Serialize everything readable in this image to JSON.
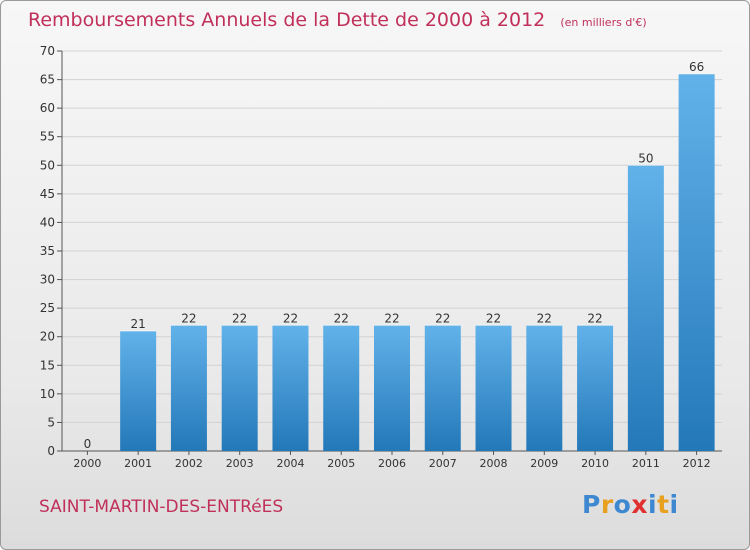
{
  "title": "Remboursements Annuels de la Dette de 2000 à 2012",
  "unit_note": "(en milliers d'€)",
  "commune": "SAINT-MARTIN-DES-ENTRéES",
  "logo": {
    "text": "Proxiti",
    "letters": [
      {
        "ch": "P",
        "color": "#3d88d0"
      },
      {
        "ch": "r",
        "color": "#e8a020"
      },
      {
        "ch": "o",
        "color": "#3d88d0"
      },
      {
        "ch": "x",
        "color": "#e03030"
      },
      {
        "ch": "i",
        "color": "#3d88d0"
      },
      {
        "ch": "t",
        "color": "#e8a020"
      },
      {
        "ch": "i",
        "color": "#3d88d0"
      }
    ]
  },
  "colors": {
    "bar_top": "#62b2ea",
    "bar_bottom": "#2378b8",
    "grid": "#d2d2d2",
    "axis": "#555555",
    "text": "#333333",
    "accent": "#c0305a"
  },
  "chart_data": {
    "type": "bar",
    "title": "Remboursements Annuels de la Dette de 2000 à 2012",
    "categories": [
      "2000",
      "2001",
      "2002",
      "2003",
      "2004",
      "2005",
      "2006",
      "2007",
      "2008",
      "2009",
      "2010",
      "2011",
      "2012"
    ],
    "values": [
      0,
      21,
      22,
      22,
      22,
      22,
      22,
      22,
      22,
      22,
      22,
      50,
      66
    ],
    "ylim": [
      0,
      70
    ],
    "yticks": [
      0,
      5,
      10,
      15,
      20,
      25,
      30,
      35,
      40,
      45,
      50,
      55,
      60,
      65,
      70
    ],
    "grid": true,
    "xlabel": "",
    "ylabel": ""
  }
}
